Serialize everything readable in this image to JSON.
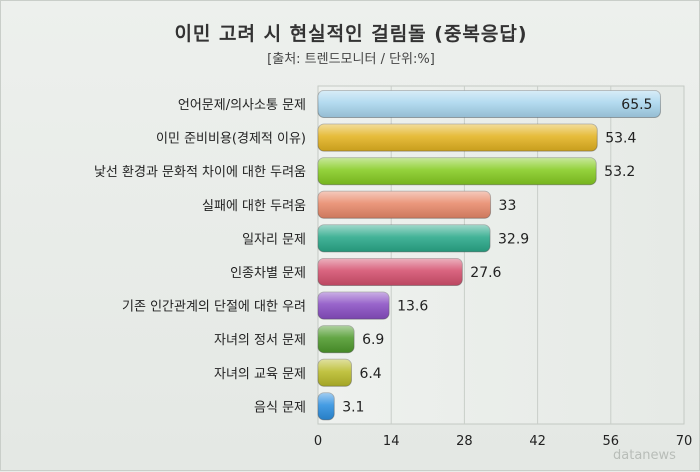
{
  "chart_data": {
    "type": "bar",
    "orientation": "horizontal",
    "title": "이민 고려 시 현실적인 걸림돌 (중복응답)",
    "subtitle": "[출처: 트렌드모니터 / 단위:%]",
    "categories": [
      "언어문제/의사소통 문제",
      "이민 준비비용(경제적 이유)",
      "낯선 환경과 문화적 차이에 대한 두려움",
      "실패에 대한 두려움",
      "일자리 문제",
      "인종차별 문제",
      "기존 인간관계의 단절에 대한 우려",
      "자녀의 정서 문제",
      "자녀의 교육 문제",
      "음식 문제"
    ],
    "values": [
      65.5,
      53.4,
      53.2,
      33,
      32.9,
      27.6,
      13.6,
      6.9,
      6.4,
      3.1
    ],
    "value_labels": [
      "65.5",
      "53.4",
      "53.2",
      "33",
      "32.9",
      "27.6",
      "13.6",
      "6.9",
      "6.4",
      "3.1"
    ],
    "colors": [
      "#a9d6ee",
      "#e3b321",
      "#86cc22",
      "#e8896a",
      "#2aa98a",
      "#d4506e",
      "#8a4fc4",
      "#4e9a2c",
      "#b9bb2a",
      "#2c8fe0"
    ],
    "x_ticks": [
      "0",
      "14",
      "28",
      "42",
      "56",
      "70"
    ],
    "xlim": [
      0,
      70
    ],
    "grid": true,
    "legend": "none"
  },
  "watermark": "datanews"
}
